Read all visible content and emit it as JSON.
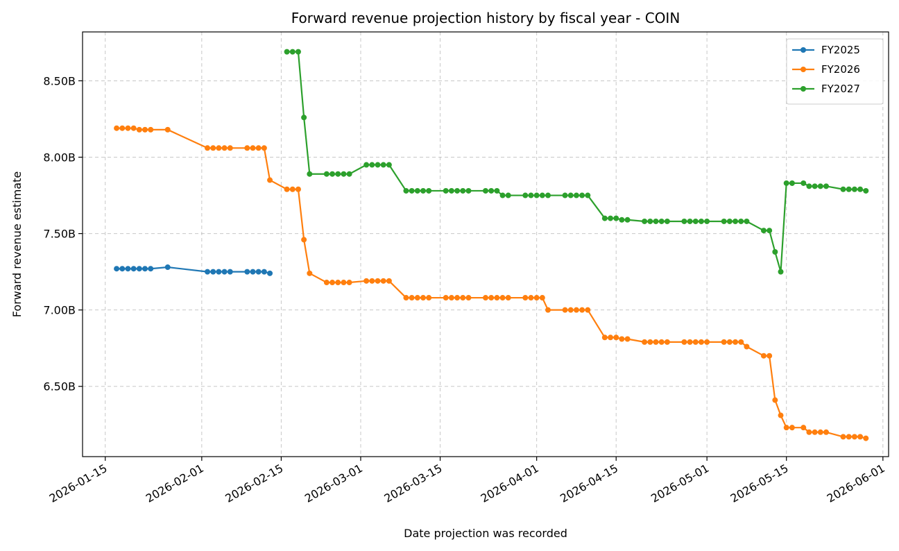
{
  "chart_data": {
    "type": "line",
    "title": "Forward revenue projection history by fiscal year - COIN",
    "xlabel": "Date projection was recorded",
    "ylabel": "Forward revenue estimate",
    "xlim": [
      "2026-01-11",
      "2026-06-02"
    ],
    "ylim": [
      6.04,
      8.82
    ],
    "x_ticks": [
      "2026-01-15",
      "2026-02-01",
      "2026-02-15",
      "2026-03-01",
      "2026-03-15",
      "2026-04-01",
      "2026-04-15",
      "2026-05-01",
      "2026-05-15",
      "2026-06-01"
    ],
    "y_ticks": [
      6.5,
      7.0,
      7.5,
      8.0,
      8.5
    ],
    "y_tick_labels": [
      "6.50B",
      "7.00B",
      "7.50B",
      "8.00B",
      "8.50B"
    ],
    "grid": true,
    "legend": "top-right",
    "series": [
      {
        "name": "FY2025",
        "color": "#1f77b4",
        "points": [
          [
            "2026-01-17",
            7.27
          ],
          [
            "2026-01-18",
            7.27
          ],
          [
            "2026-01-19",
            7.27
          ],
          [
            "2026-01-20",
            7.27
          ],
          [
            "2026-01-21",
            7.27
          ],
          [
            "2026-01-22",
            7.27
          ],
          [
            "2026-01-23",
            7.27
          ],
          [
            "2026-01-26",
            7.28
          ],
          [
            "2026-02-02",
            7.25
          ],
          [
            "2026-02-03",
            7.25
          ],
          [
            "2026-02-04",
            7.25
          ],
          [
            "2026-02-05",
            7.25
          ],
          [
            "2026-02-06",
            7.25
          ],
          [
            "2026-02-09",
            7.25
          ],
          [
            "2026-02-10",
            7.25
          ],
          [
            "2026-02-11",
            7.25
          ],
          [
            "2026-02-12",
            7.25
          ],
          [
            "2026-02-13",
            7.24
          ]
        ]
      },
      {
        "name": "FY2026",
        "color": "#ff7f0e",
        "points": [
          [
            "2026-01-17",
            8.19
          ],
          [
            "2026-01-18",
            8.19
          ],
          [
            "2026-01-19",
            8.19
          ],
          [
            "2026-01-20",
            8.19
          ],
          [
            "2026-01-21",
            8.18
          ],
          [
            "2026-01-22",
            8.18
          ],
          [
            "2026-01-23",
            8.18
          ],
          [
            "2026-01-26",
            8.18
          ],
          [
            "2026-02-02",
            8.06
          ],
          [
            "2026-02-03",
            8.06
          ],
          [
            "2026-02-04",
            8.06
          ],
          [
            "2026-02-05",
            8.06
          ],
          [
            "2026-02-06",
            8.06
          ],
          [
            "2026-02-09",
            8.06
          ],
          [
            "2026-02-10",
            8.06
          ],
          [
            "2026-02-11",
            8.06
          ],
          [
            "2026-02-12",
            8.06
          ],
          [
            "2026-02-13",
            7.85
          ],
          [
            "2026-02-16",
            7.79
          ],
          [
            "2026-02-17",
            7.79
          ],
          [
            "2026-02-18",
            7.79
          ],
          [
            "2026-02-19",
            7.46
          ],
          [
            "2026-02-20",
            7.24
          ],
          [
            "2026-02-23",
            7.18
          ],
          [
            "2026-02-24",
            7.18
          ],
          [
            "2026-02-25",
            7.18
          ],
          [
            "2026-02-26",
            7.18
          ],
          [
            "2026-02-27",
            7.18
          ],
          [
            "2026-03-02",
            7.19
          ],
          [
            "2026-03-03",
            7.19
          ],
          [
            "2026-03-04",
            7.19
          ],
          [
            "2026-03-05",
            7.19
          ],
          [
            "2026-03-06",
            7.19
          ],
          [
            "2026-03-09",
            7.08
          ],
          [
            "2026-03-10",
            7.08
          ],
          [
            "2026-03-11",
            7.08
          ],
          [
            "2026-03-12",
            7.08
          ],
          [
            "2026-03-13",
            7.08
          ],
          [
            "2026-03-16",
            7.08
          ],
          [
            "2026-03-17",
            7.08
          ],
          [
            "2026-03-18",
            7.08
          ],
          [
            "2026-03-19",
            7.08
          ],
          [
            "2026-03-20",
            7.08
          ],
          [
            "2026-03-23",
            7.08
          ],
          [
            "2026-03-24",
            7.08
          ],
          [
            "2026-03-25",
            7.08
          ],
          [
            "2026-03-26",
            7.08
          ],
          [
            "2026-03-27",
            7.08
          ],
          [
            "2026-03-30",
            7.08
          ],
          [
            "2026-03-31",
            7.08
          ],
          [
            "2026-04-01",
            7.08
          ],
          [
            "2026-04-02",
            7.08
          ],
          [
            "2026-04-03",
            7.0
          ],
          [
            "2026-04-06",
            7.0
          ],
          [
            "2026-04-07",
            7.0
          ],
          [
            "2026-04-08",
            7.0
          ],
          [
            "2026-04-09",
            7.0
          ],
          [
            "2026-04-10",
            7.0
          ],
          [
            "2026-04-13",
            6.82
          ],
          [
            "2026-04-14",
            6.82
          ],
          [
            "2026-04-15",
            6.82
          ],
          [
            "2026-04-16",
            6.81
          ],
          [
            "2026-04-17",
            6.81
          ],
          [
            "2026-04-20",
            6.79
          ],
          [
            "2026-04-21",
            6.79
          ],
          [
            "2026-04-22",
            6.79
          ],
          [
            "2026-04-23",
            6.79
          ],
          [
            "2026-04-24",
            6.79
          ],
          [
            "2026-04-27",
            6.79
          ],
          [
            "2026-04-28",
            6.79
          ],
          [
            "2026-04-29",
            6.79
          ],
          [
            "2026-04-30",
            6.79
          ],
          [
            "2026-05-01",
            6.79
          ],
          [
            "2026-05-04",
            6.79
          ],
          [
            "2026-05-05",
            6.79
          ],
          [
            "2026-05-06",
            6.79
          ],
          [
            "2026-05-07",
            6.79
          ],
          [
            "2026-05-08",
            6.76
          ],
          [
            "2026-05-11",
            6.7
          ],
          [
            "2026-05-12",
            6.7
          ],
          [
            "2026-05-13",
            6.41
          ],
          [
            "2026-05-14",
            6.31
          ],
          [
            "2026-05-15",
            6.23
          ],
          [
            "2026-05-16",
            6.23
          ],
          [
            "2026-05-18",
            6.23
          ],
          [
            "2026-05-19",
            6.2
          ],
          [
            "2026-05-20",
            6.2
          ],
          [
            "2026-05-21",
            6.2
          ],
          [
            "2026-05-22",
            6.2
          ],
          [
            "2026-05-25",
            6.17
          ],
          [
            "2026-05-26",
            6.17
          ],
          [
            "2026-05-27",
            6.17
          ],
          [
            "2026-05-28",
            6.17
          ],
          [
            "2026-05-29",
            6.16
          ]
        ]
      },
      {
        "name": "FY2027",
        "color": "#2ca02c",
        "points": [
          [
            "2026-02-16",
            8.69
          ],
          [
            "2026-02-17",
            8.69
          ],
          [
            "2026-02-18",
            8.69
          ],
          [
            "2026-02-19",
            8.26
          ],
          [
            "2026-02-20",
            7.89
          ],
          [
            "2026-02-23",
            7.89
          ],
          [
            "2026-02-24",
            7.89
          ],
          [
            "2026-02-25",
            7.89
          ],
          [
            "2026-02-26",
            7.89
          ],
          [
            "2026-02-27",
            7.89
          ],
          [
            "2026-03-02",
            7.95
          ],
          [
            "2026-03-03",
            7.95
          ],
          [
            "2026-03-04",
            7.95
          ],
          [
            "2026-03-05",
            7.95
          ],
          [
            "2026-03-06",
            7.95
          ],
          [
            "2026-03-09",
            7.78
          ],
          [
            "2026-03-10",
            7.78
          ],
          [
            "2026-03-11",
            7.78
          ],
          [
            "2026-03-12",
            7.78
          ],
          [
            "2026-03-13",
            7.78
          ],
          [
            "2026-03-16",
            7.78
          ],
          [
            "2026-03-17",
            7.78
          ],
          [
            "2026-03-18",
            7.78
          ],
          [
            "2026-03-19",
            7.78
          ],
          [
            "2026-03-20",
            7.78
          ],
          [
            "2026-03-23",
            7.78
          ],
          [
            "2026-03-24",
            7.78
          ],
          [
            "2026-03-25",
            7.78
          ],
          [
            "2026-03-26",
            7.75
          ],
          [
            "2026-03-27",
            7.75
          ],
          [
            "2026-03-30",
            7.75
          ],
          [
            "2026-03-31",
            7.75
          ],
          [
            "2026-04-01",
            7.75
          ],
          [
            "2026-04-02",
            7.75
          ],
          [
            "2026-04-03",
            7.75
          ],
          [
            "2026-04-06",
            7.75
          ],
          [
            "2026-04-07",
            7.75
          ],
          [
            "2026-04-08",
            7.75
          ],
          [
            "2026-04-09",
            7.75
          ],
          [
            "2026-04-10",
            7.75
          ],
          [
            "2026-04-13",
            7.6
          ],
          [
            "2026-04-14",
            7.6
          ],
          [
            "2026-04-15",
            7.6
          ],
          [
            "2026-04-16",
            7.59
          ],
          [
            "2026-04-17",
            7.59
          ],
          [
            "2026-04-20",
            7.58
          ],
          [
            "2026-04-21",
            7.58
          ],
          [
            "2026-04-22",
            7.58
          ],
          [
            "2026-04-23",
            7.58
          ],
          [
            "2026-04-24",
            7.58
          ],
          [
            "2026-04-27",
            7.58
          ],
          [
            "2026-04-28",
            7.58
          ],
          [
            "2026-04-29",
            7.58
          ],
          [
            "2026-04-30",
            7.58
          ],
          [
            "2026-05-01",
            7.58
          ],
          [
            "2026-05-04",
            7.58
          ],
          [
            "2026-05-05",
            7.58
          ],
          [
            "2026-05-06",
            7.58
          ],
          [
            "2026-05-07",
            7.58
          ],
          [
            "2026-05-08",
            7.58
          ],
          [
            "2026-05-11",
            7.52
          ],
          [
            "2026-05-12",
            7.52
          ],
          [
            "2026-05-13",
            7.38
          ],
          [
            "2026-05-14",
            7.25
          ],
          [
            "2026-05-15",
            7.83
          ],
          [
            "2026-05-16",
            7.83
          ],
          [
            "2026-05-18",
            7.83
          ],
          [
            "2026-05-19",
            7.81
          ],
          [
            "2026-05-20",
            7.81
          ],
          [
            "2026-05-21",
            7.81
          ],
          [
            "2026-05-22",
            7.81
          ],
          [
            "2026-05-25",
            7.79
          ],
          [
            "2026-05-26",
            7.79
          ],
          [
            "2026-05-27",
            7.79
          ],
          [
            "2026-05-28",
            7.79
          ],
          [
            "2026-05-29",
            7.78
          ]
        ]
      }
    ]
  }
}
